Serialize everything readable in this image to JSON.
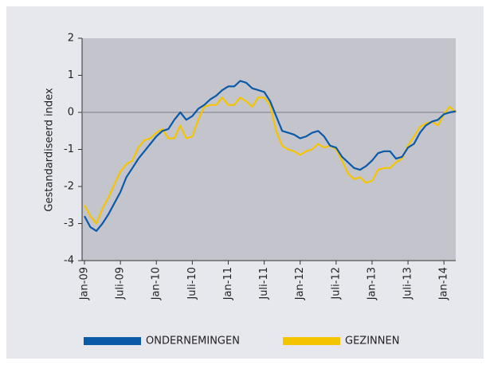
{
  "chart_data": {
    "type": "line",
    "y_label": "Gestandardiseerd index",
    "categories": [
      "Jan-09",
      null,
      null,
      null,
      null,
      null,
      "Juli-09",
      null,
      null,
      null,
      null,
      null,
      "Jan-10",
      null,
      null,
      null,
      null,
      null,
      "Juli-10",
      null,
      null,
      null,
      null,
      null,
      "Jan-11",
      null,
      null,
      null,
      null,
      null,
      "Juli-11",
      null,
      null,
      null,
      null,
      null,
      "Jan-12",
      null,
      null,
      null,
      null,
      null,
      "Juli-12",
      null,
      null,
      null,
      null,
      null,
      "Jan-13",
      null,
      null,
      null,
      null,
      null,
      "Juli-13",
      null,
      null,
      null,
      null,
      null,
      "Jan-14",
      null,
      null
    ],
    "series": [
      {
        "name": "ONDERNEMINGEN",
        "color": "#0a5aa8",
        "values": [
          -2.8,
          -3.1,
          -3.2,
          -3.0,
          -2.75,
          -2.45,
          -2.15,
          -1.75,
          -1.5,
          -1.25,
          -1.05,
          -0.85,
          -0.65,
          -0.5,
          -0.45,
          -0.2,
          0.0,
          -0.2,
          -0.1,
          0.1,
          0.2,
          0.35,
          0.45,
          0.6,
          0.7,
          0.7,
          0.85,
          0.8,
          0.65,
          0.6,
          0.55,
          0.3,
          -0.1,
          -0.5,
          -0.55,
          -0.6,
          -0.7,
          -0.65,
          -0.55,
          -0.5,
          -0.65,
          -0.9,
          -0.95,
          -1.2,
          -1.35,
          -1.5,
          -1.55,
          -1.45,
          -1.3,
          -1.1,
          -1.05,
          -1.05,
          -1.25,
          -1.2,
          -0.95,
          -0.85,
          -0.55,
          -0.35,
          -0.25,
          -0.2,
          -0.05,
          0.0,
          0.03
        ]
      },
      {
        "name": "GEZINNEN",
        "color": "#f5c400",
        "values": [
          -2.5,
          -2.8,
          -3.0,
          -2.6,
          -2.3,
          -1.95,
          -1.6,
          -1.4,
          -1.3,
          -0.95,
          -0.75,
          -0.7,
          -0.55,
          -0.45,
          -0.7,
          -0.7,
          -0.35,
          -0.7,
          -0.65,
          -0.2,
          0.15,
          0.2,
          0.2,
          0.4,
          0.2,
          0.2,
          0.4,
          0.3,
          0.15,
          0.4,
          0.4,
          0.2,
          -0.5,
          -0.9,
          -1.0,
          -1.05,
          -1.15,
          -1.05,
          -1.0,
          -0.85,
          -0.95,
          -0.9,
          -1.0,
          -1.3,
          -1.65,
          -1.8,
          -1.75,
          -1.9,
          -1.85,
          -1.55,
          -1.5,
          -1.5,
          -1.35,
          -1.25,
          -0.9,
          -0.65,
          -0.4,
          -0.3,
          -0.25,
          -0.35,
          -0.05,
          0.15,
          0.0
        ]
      }
    ],
    "ylim": [
      -4,
      2
    ],
    "yticks": [
      -4,
      -3,
      -2,
      -1,
      0,
      1,
      2
    ],
    "grid": false,
    "legend": "bottom"
  }
}
